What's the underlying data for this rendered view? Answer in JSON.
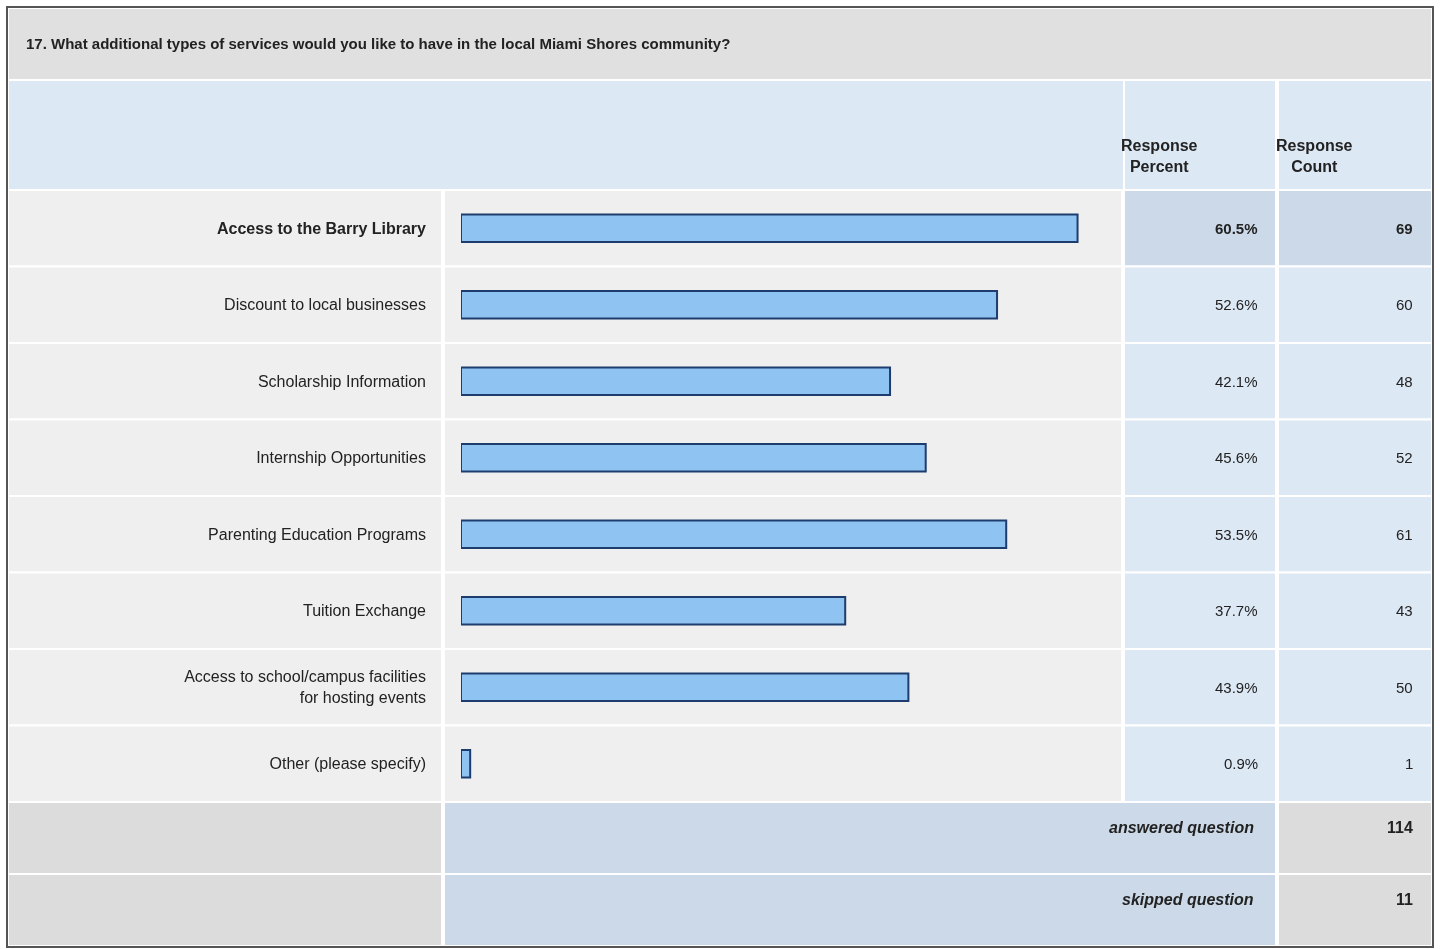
{
  "chart_data": {
    "type": "bar",
    "orientation": "horizontal",
    "title": "17. What additional types of services would you like to have in the local Miami Shores community?",
    "categories": [
      "Access to the Barry Library",
      "Discount to local businesses",
      "Scholarship Information",
      "Internship Opportunities",
      "Parenting Education Programs",
      "Tuition Exchange",
      "Access to school/campus facilities for hosting events",
      "Other (please specify)"
    ],
    "values": [
      60.5,
      52.6,
      42.1,
      45.6,
      53.5,
      37.7,
      43.9,
      0.9
    ],
    "value_labels": [
      "60.5%",
      "52.6%",
      "42.1%",
      "45.6%",
      "53.5%",
      "37.7%",
      "43.9%",
      "0.9%"
    ],
    "color": "#8fc4f2",
    "tick_labels": false,
    "grid": false,
    "annotations": [
      "Response Percent",
      "Response Count",
      "69",
      "60",
      "48",
      "52",
      "61",
      "43",
      "50",
      "1",
      "answered question",
      "114",
      "skipped question",
      "11"
    ]
  }
}
